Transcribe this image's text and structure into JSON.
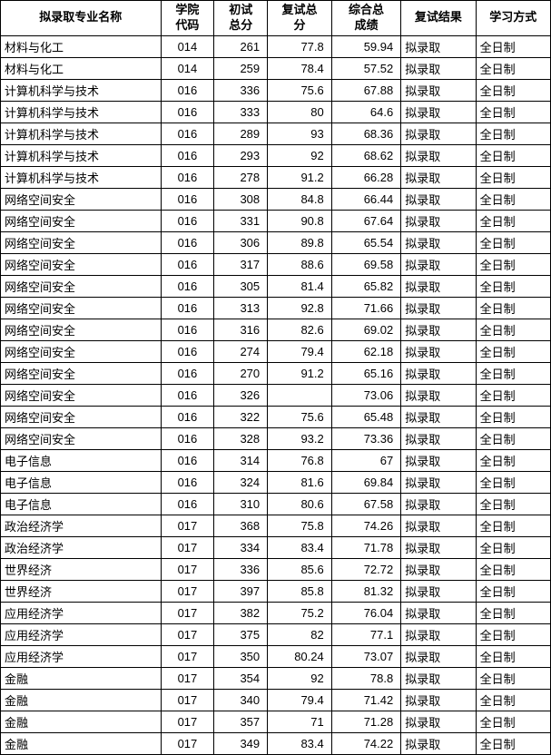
{
  "table": {
    "columns": [
      "拟录取专业名称",
      "学院\n代码",
      "初试\n总分",
      "复试总\n分",
      "综合总\n成绩",
      "复试结果",
      "学习方式"
    ],
    "rows": [
      [
        "材料与化工",
        "014",
        "261",
        "77.8",
        "59.94",
        "拟录取",
        "全日制"
      ],
      [
        "材料与化工",
        "014",
        "259",
        "78.4",
        "57.52",
        "拟录取",
        "全日制"
      ],
      [
        "计算机科学与技术",
        "016",
        "336",
        "75.6",
        "67.88",
        "拟录取",
        "全日制"
      ],
      [
        "计算机科学与技术",
        "016",
        "333",
        "80",
        "64.6",
        "拟录取",
        "全日制"
      ],
      [
        "计算机科学与技术",
        "016",
        "289",
        "93",
        "68.36",
        "拟录取",
        "全日制"
      ],
      [
        "计算机科学与技术",
        "016",
        "293",
        "92",
        "68.62",
        "拟录取",
        "全日制"
      ],
      [
        "计算机科学与技术",
        "016",
        "278",
        "91.2",
        "66.28",
        "拟录取",
        "全日制"
      ],
      [
        "网络空间安全",
        "016",
        "308",
        "84.8",
        "66.44",
        "拟录取",
        "全日制"
      ],
      [
        "网络空间安全",
        "016",
        "331",
        "90.8",
        "67.64",
        "拟录取",
        "全日制"
      ],
      [
        "网络空间安全",
        "016",
        "306",
        "89.8",
        "65.54",
        "拟录取",
        "全日制"
      ],
      [
        "网络空间安全",
        "016",
        "317",
        "88.6",
        "69.58",
        "拟录取",
        "全日制"
      ],
      [
        "网络空间安全",
        "016",
        "305",
        "81.4",
        "65.82",
        "拟录取",
        "全日制"
      ],
      [
        "网络空间安全",
        "016",
        "313",
        "92.8",
        "71.66",
        "拟录取",
        "全日制"
      ],
      [
        "网络空间安全",
        "016",
        "316",
        "82.6",
        "69.02",
        "拟录取",
        "全日制"
      ],
      [
        "网络空间安全",
        "016",
        "274",
        "79.4",
        "62.18",
        "拟录取",
        "全日制"
      ],
      [
        "网络空间安全",
        "016",
        "270",
        "91.2",
        "65.16",
        "拟录取",
        "全日制"
      ],
      [
        "网络空间安全",
        "016",
        "326",
        "",
        "73.06",
        "拟录取",
        "全日制"
      ],
      [
        "网络空间安全",
        "016",
        "322",
        "75.6",
        "65.48",
        "拟录取",
        "全日制"
      ],
      [
        "网络空间安全",
        "016",
        "328",
        "93.2",
        "73.36",
        "拟录取",
        "全日制"
      ],
      [
        "电子信息",
        "016",
        "314",
        "76.8",
        "67",
        "拟录取",
        "全日制"
      ],
      [
        "电子信息",
        "016",
        "324",
        "81.6",
        "69.84",
        "拟录取",
        "全日制"
      ],
      [
        "电子信息",
        "016",
        "310",
        "80.6",
        "67.58",
        "拟录取",
        "全日制"
      ],
      [
        "政治经济学",
        "017",
        "368",
        "75.8",
        "74.26",
        "拟录取",
        "全日制"
      ],
      [
        "政治经济学",
        "017",
        "334",
        "83.4",
        "71.78",
        "拟录取",
        "全日制"
      ],
      [
        "世界经济",
        "017",
        "336",
        "85.6",
        "72.72",
        "拟录取",
        "全日制"
      ],
      [
        "世界经济",
        "017",
        "397",
        "85.8",
        "81.32",
        "拟录取",
        "全日制"
      ],
      [
        "应用经济学",
        "017",
        "382",
        "75.2",
        "76.04",
        "拟录取",
        "全日制"
      ],
      [
        "应用经济学",
        "017",
        "375",
        "82",
        "77.1",
        "拟录取",
        "全日制"
      ],
      [
        "应用经济学",
        "017",
        "350",
        "80.24",
        "73.07",
        "拟录取",
        "全日制"
      ],
      [
        "金融",
        "017",
        "354",
        "92",
        "78.8",
        "拟录取",
        "全日制"
      ],
      [
        "金融",
        "017",
        "340",
        "79.4",
        "71.42",
        "拟录取",
        "全日制"
      ],
      [
        "金融",
        "017",
        "357",
        "71",
        "71.28",
        "拟录取",
        "全日制"
      ],
      [
        "金融",
        "017",
        "349",
        "83.4",
        "74.22",
        "拟录取",
        "全日制"
      ]
    ],
    "col_classes": [
      "col-major",
      "col-code",
      "col-score1",
      "col-score2",
      "col-score3",
      "col-result",
      "col-mode"
    ],
    "cell_align": [
      "left",
      "center",
      "num",
      "num",
      "num",
      "left",
      "left"
    ],
    "border_color": "#000000",
    "background_color": "#ffffff",
    "font_size": 13,
    "header_font_weight": "bold"
  }
}
